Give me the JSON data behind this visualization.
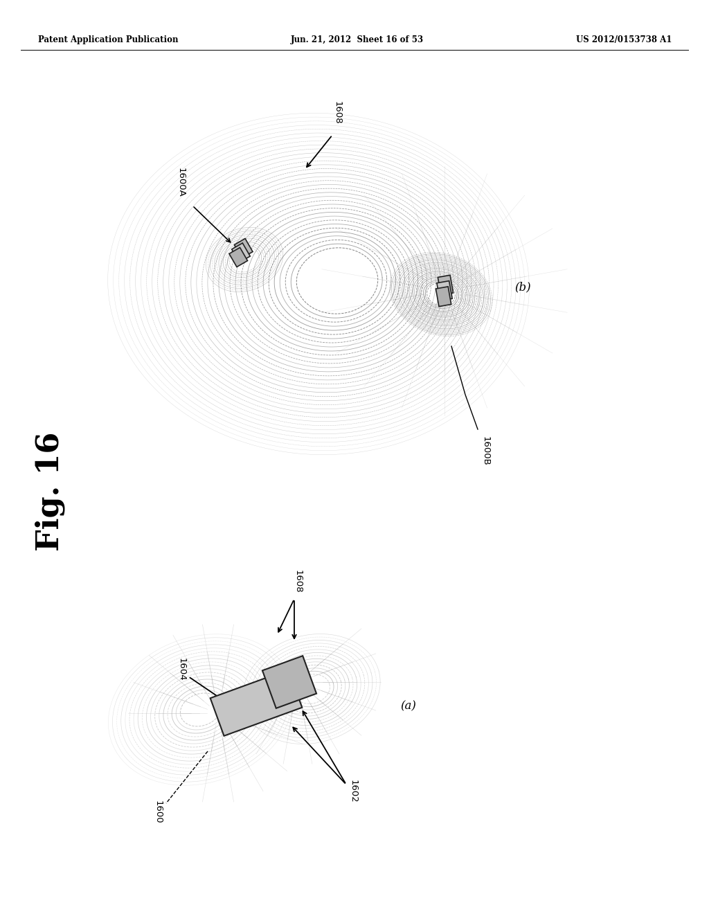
{
  "bg_color": "#ffffff",
  "header_left": "Patent Application Publication",
  "header_center": "Jun. 21, 2012  Sheet 16 of 53",
  "header_right": "US 2012/0153738 A1",
  "fig_label": "Fig. 16",
  "diagram_b_label": "(b)",
  "diagram_a_label": "(a)",
  "ref_1608_b": "1608",
  "ref_1600A": "1600A",
  "ref_1600B": "1600B",
  "ref_1608_a": "1608",
  "ref_1604": "1604",
  "ref_1600": "1600",
  "ref_1602": "1602",
  "line_color_dark": "#555555",
  "line_color_mid": "#888888",
  "line_color_light": "#aaaaaa",
  "coil_face": "#c0c0c0",
  "coil_edge": "#333333",
  "rect_face_dark": "#b0b0b0",
  "rect_face_light": "#d0d0d0"
}
